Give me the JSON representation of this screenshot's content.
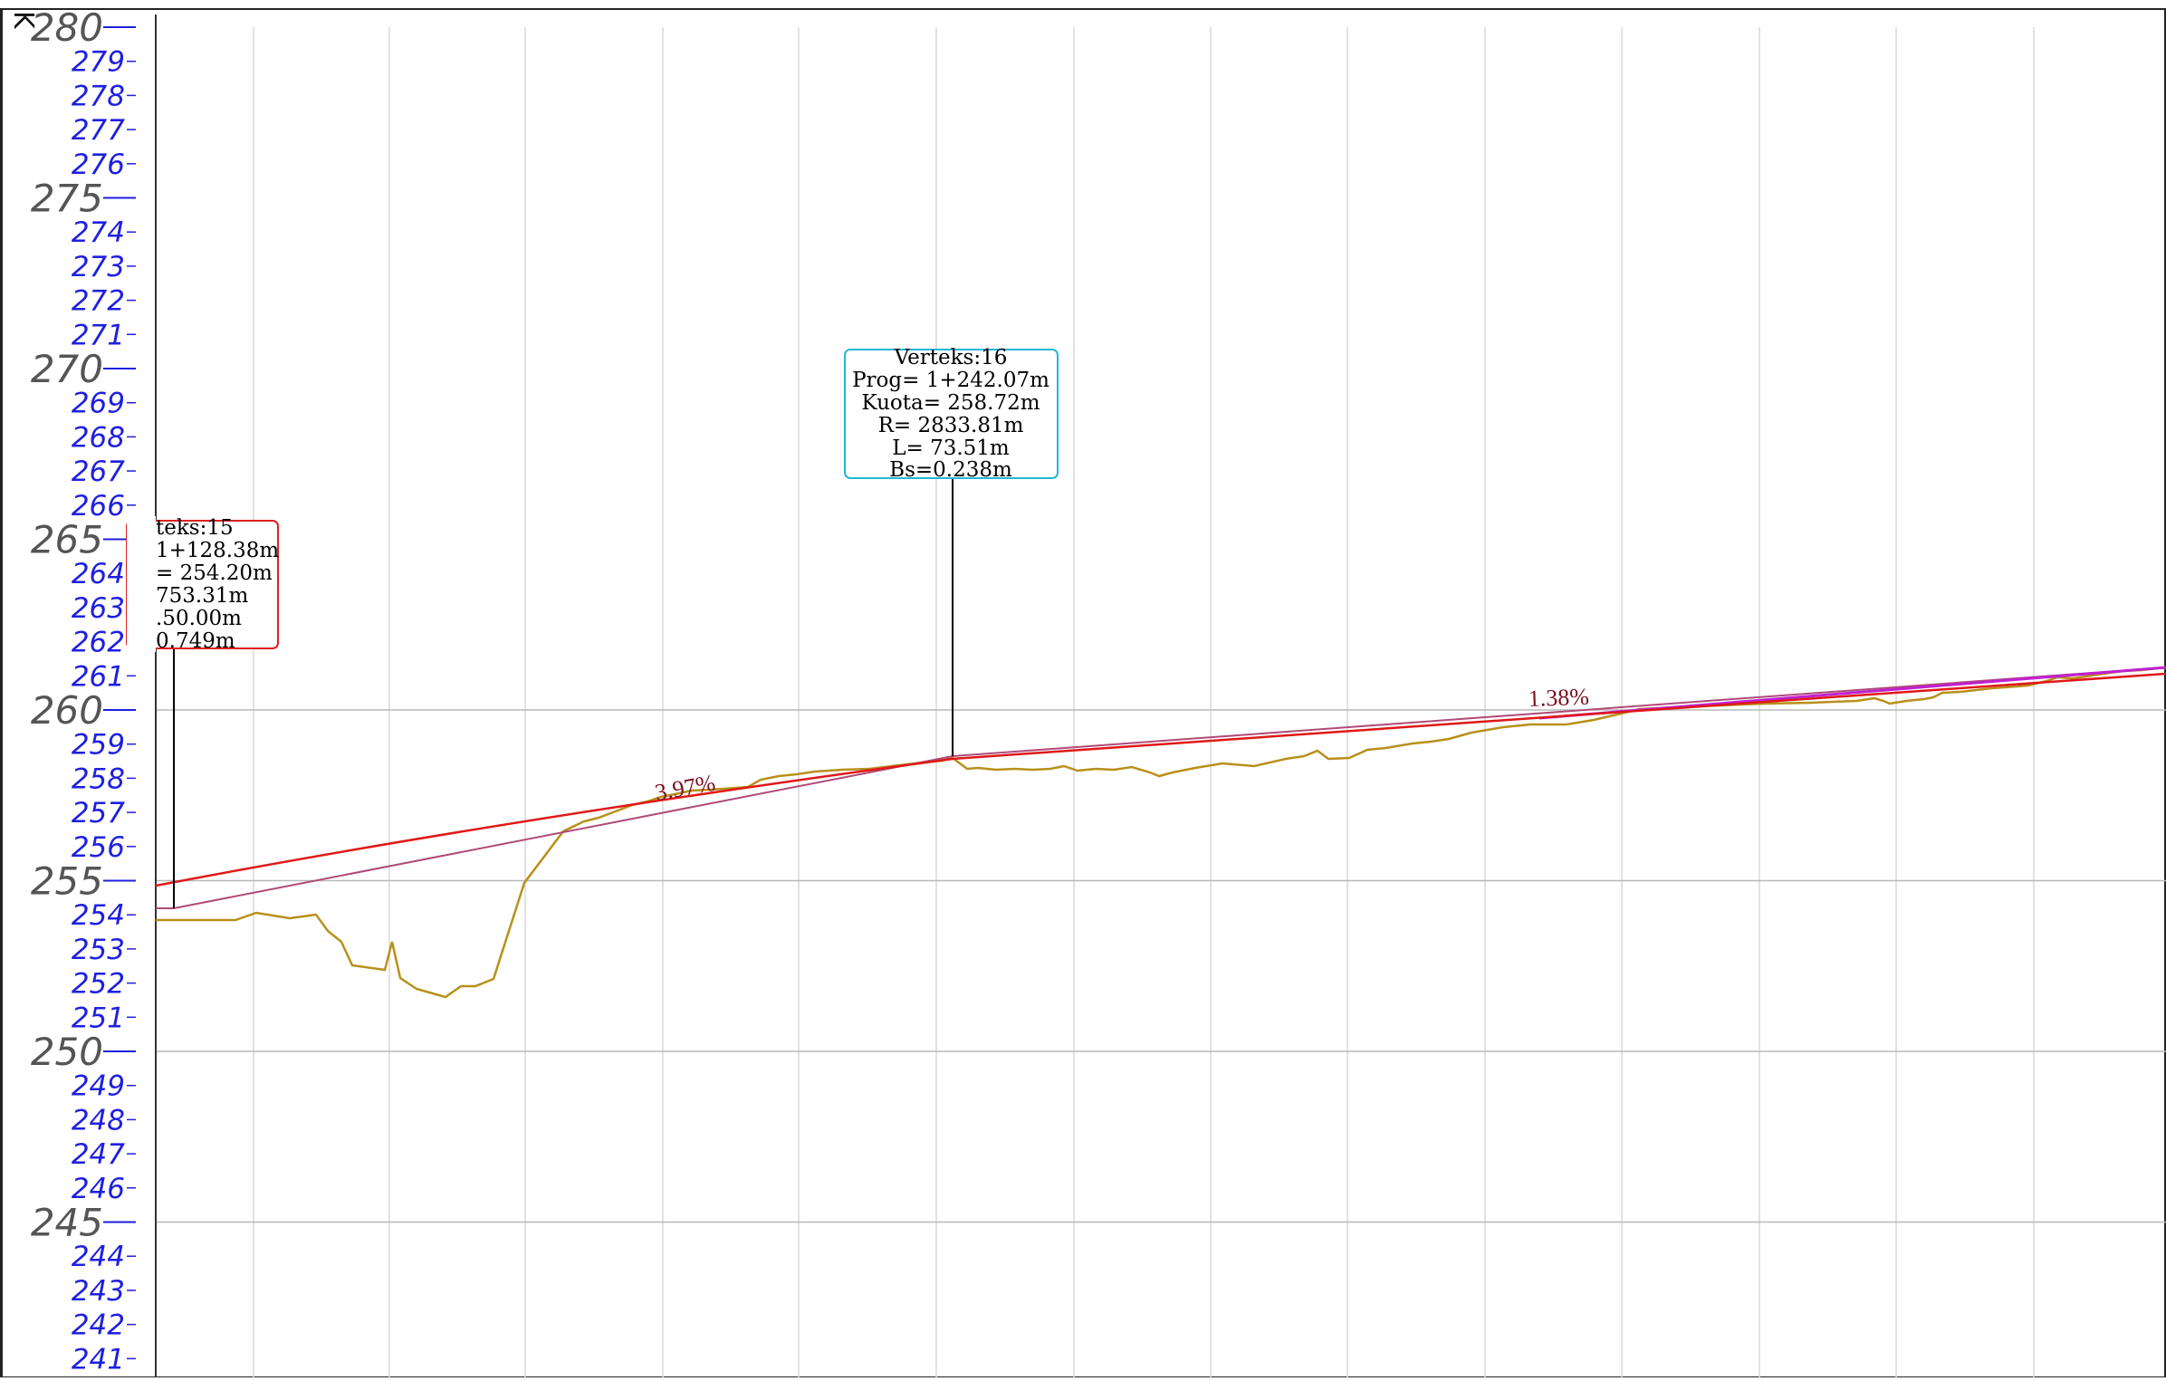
{
  "axis": {
    "label": "K",
    "min": 241,
    "max": 280,
    "major_ticks": [
      280,
      275,
      270,
      265,
      260,
      255,
      250,
      245
    ],
    "minor_ticks": [
      279,
      278,
      277,
      276,
      274,
      273,
      272,
      271,
      269,
      268,
      267,
      266,
      264,
      263,
      262,
      261,
      259,
      258,
      257,
      256,
      254,
      253,
      252,
      251,
      249,
      248,
      247,
      246,
      244,
      243,
      242,
      241
    ]
  },
  "vertex_16": {
    "title": "Verteks:16",
    "prog": "Prog=  1+242.07m",
    "kuota": "Kuota=  258.72m",
    "r": "R=  2833.81m",
    "l": "L=  73.51m",
    "bs": "Bs=0.238m",
    "border_color": "#20b8d8"
  },
  "vertex_15": {
    "title": "teks:15",
    "prog": "1+128.38m",
    "kuota": "=  254.20m",
    "r": "753.31m",
    "l": ".50.00m",
    "bs": "0.749m",
    "border_color": "#e02020"
  },
  "grades": {
    "left": "3.97%",
    "right": "1.38%"
  },
  "colors": {
    "terrain": "#b8901a",
    "design_curve": "#e01818",
    "tangent": "#b04a78",
    "grade_line": "#c020d0",
    "tick_minor": "#1f1fe0",
    "tick_major": "#555555",
    "grid": "#d8d8d8"
  }
}
